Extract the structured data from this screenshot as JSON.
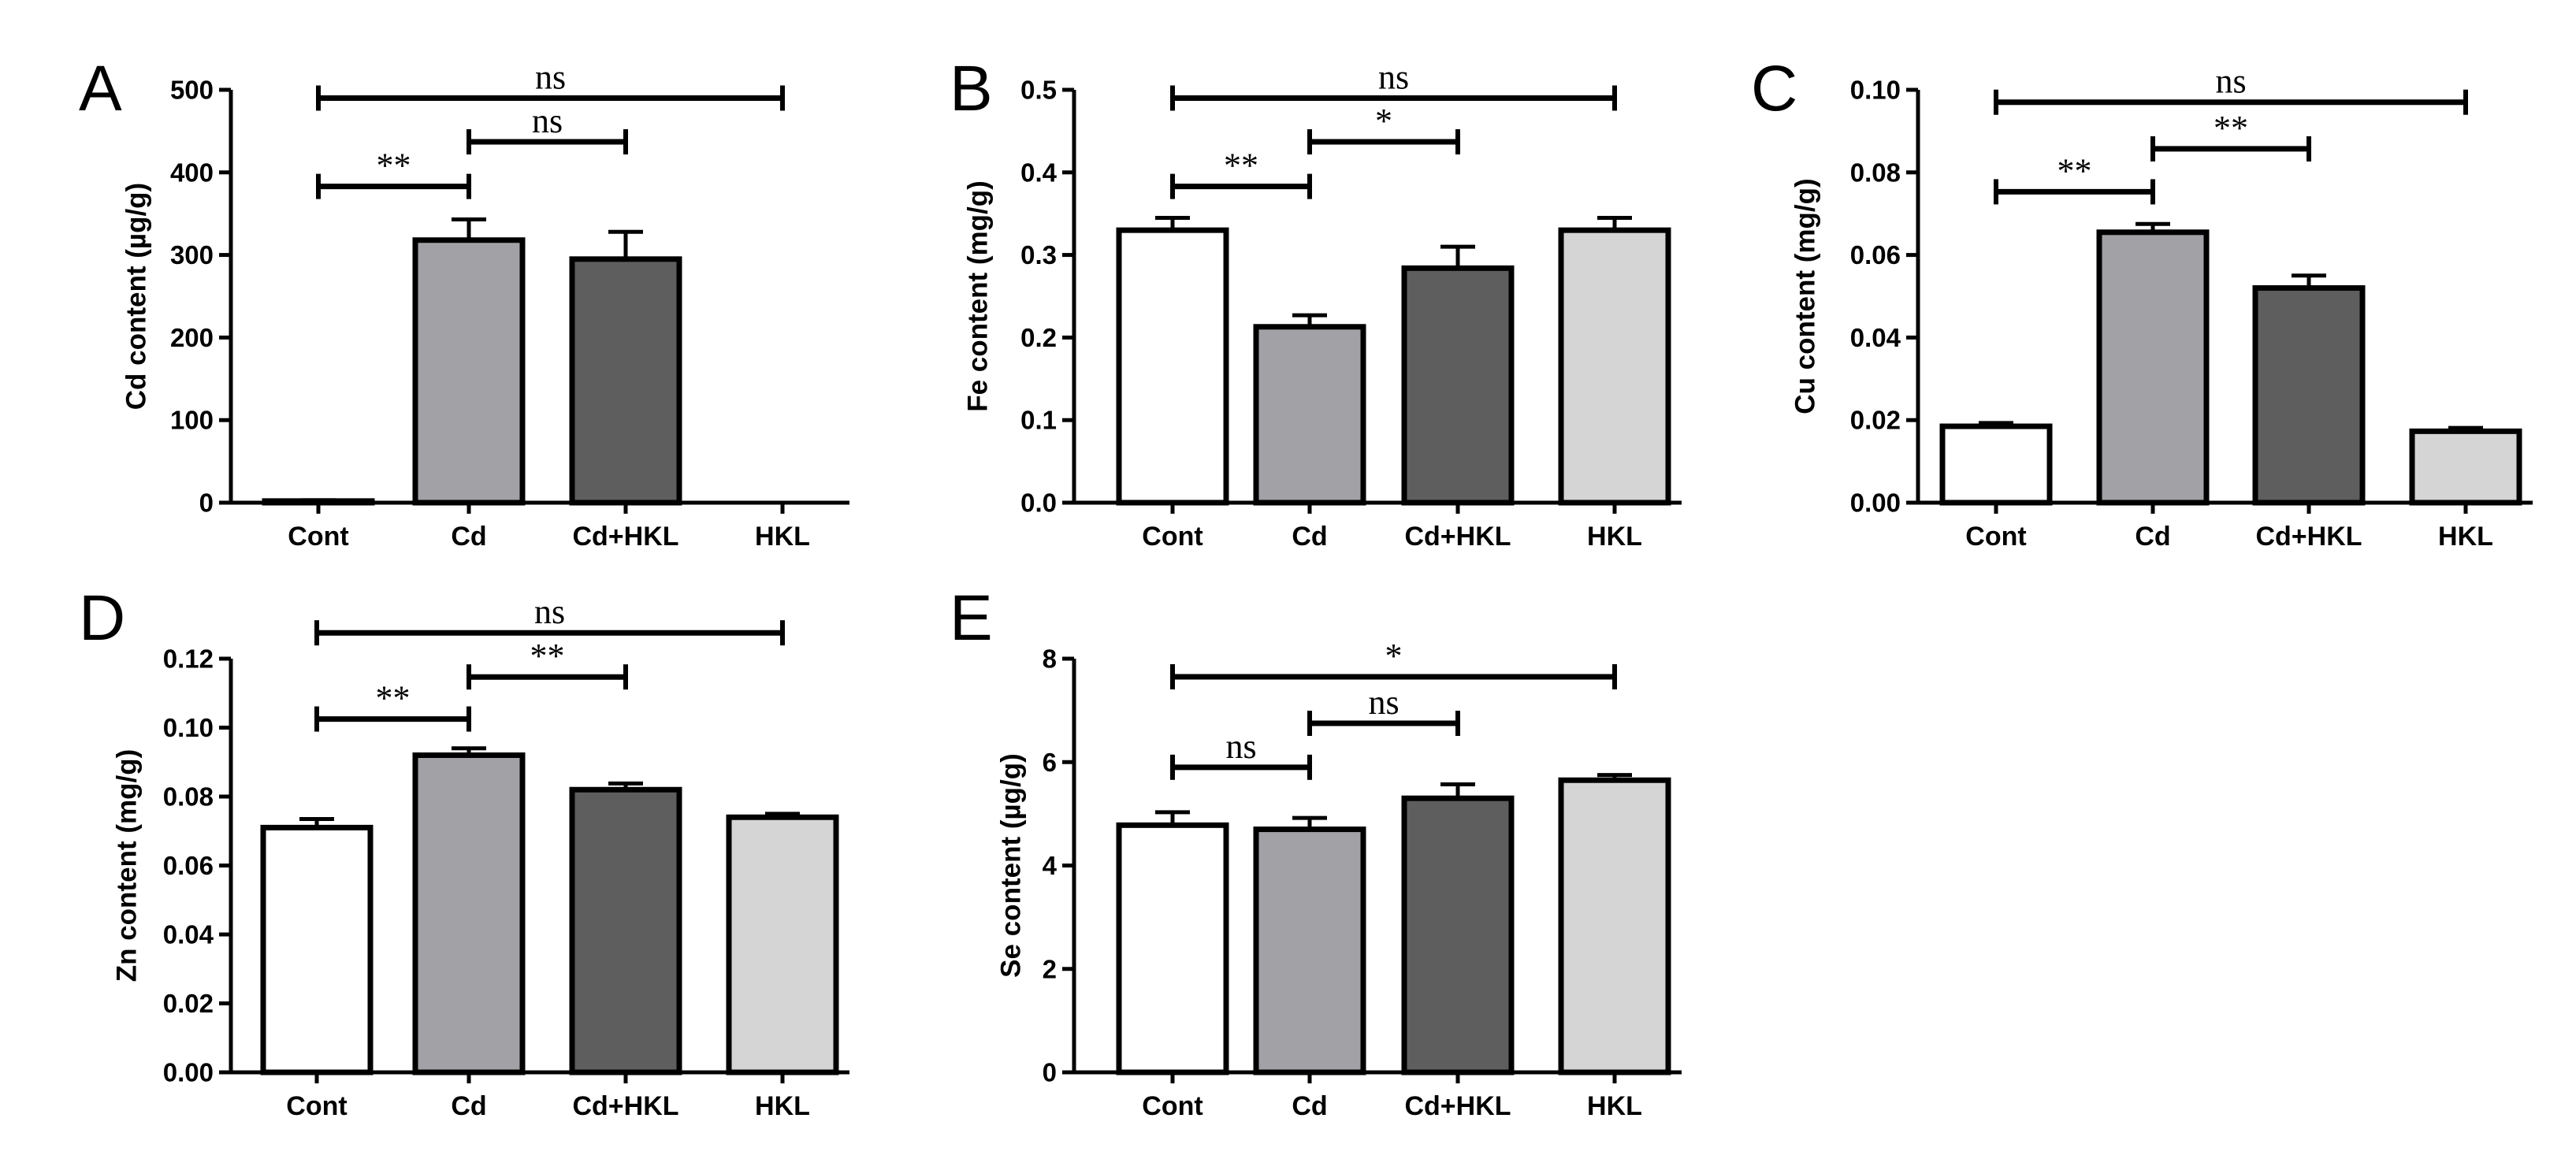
{
  "chart_data": [
    {
      "panel": "A",
      "type": "bar",
      "ylabel": "Cd content (µg/g)",
      "categories": [
        "Cont",
        "Cd",
        "Cd+HKL",
        "HKL"
      ],
      "values": [
        2,
        318,
        295,
        0
      ],
      "errors": [
        1,
        25,
        33,
        0
      ],
      "ylim": [
        0,
        500
      ],
      "yticks": [
        "0",
        "100",
        "200",
        "300",
        "400",
        "500"
      ],
      "ytick_values": [
        0,
        100,
        200,
        300,
        400,
        500
      ],
      "brackets": [
        {
          "from": 0,
          "to": 3,
          "label": "ns",
          "level": 490
        },
        {
          "from": 1,
          "to": 2,
          "label": "ns",
          "level": 437
        },
        {
          "from": 0,
          "to": 1,
          "label": "**",
          "level": 383
        }
      ]
    },
    {
      "panel": "B",
      "type": "bar",
      "ylabel": "Fe content (mg/g)",
      "categories": [
        "Cont",
        "Cd",
        "Cd+HKL",
        "HKL"
      ],
      "values": [
        0.33,
        0.213,
        0.284,
        0.33
      ],
      "errors": [
        0.015,
        0.014,
        0.026,
        0.015
      ],
      "ylim": [
        0,
        0.5
      ],
      "yticks": [
        "0.0",
        "0.1",
        "0.2",
        "0.3",
        "0.4",
        "0.5"
      ],
      "ytick_values": [
        0,
        0.1,
        0.2,
        0.3,
        0.4,
        0.5
      ],
      "brackets": [
        {
          "from": 0,
          "to": 3,
          "label": "ns",
          "level": 0.49
        },
        {
          "from": 1,
          "to": 2,
          "label": "*",
          "level": 0.437
        },
        {
          "from": 0,
          "to": 1,
          "label": "**",
          "level": 0.383
        }
      ]
    },
    {
      "panel": "C",
      "type": "bar",
      "ylabel": "Cu content (mg/g)",
      "categories": [
        "Cont",
        "Cd",
        "Cd+HKL",
        "HKL"
      ],
      "values": [
        0.0185,
        0.0655,
        0.052,
        0.0173
      ],
      "errors": [
        0.0008,
        0.002,
        0.003,
        0.0008
      ],
      "ylim": [
        0,
        0.1
      ],
      "yticks": [
        "0.00",
        "0.02",
        "0.04",
        "0.06",
        "0.08",
        "0.10"
      ],
      "ytick_values": [
        0,
        0.02,
        0.04,
        0.06,
        0.08,
        0.1
      ],
      "brackets": [
        {
          "from": 0,
          "to": 3,
          "label": "ns",
          "level": 0.097
        },
        {
          "from": 1,
          "to": 2,
          "label": "**",
          "level": 0.0857
        },
        {
          "from": 0,
          "to": 1,
          "label": "**",
          "level": 0.0753
        }
      ]
    },
    {
      "panel": "D",
      "type": "bar",
      "ylabel": "Zn content (mg/g)",
      "categories": [
        "Cont",
        "Cd",
        "Cd+HKL",
        "HKL"
      ],
      "values": [
        0.071,
        0.092,
        0.082,
        0.074
      ],
      "errors": [
        0.0025,
        0.002,
        0.0018,
        0.001
      ],
      "ylim": [
        0,
        0.12
      ],
      "yticks": [
        "0.00",
        "0.02",
        "0.04",
        "0.06",
        "0.08",
        "0.10",
        "0.12"
      ],
      "ytick_values": [
        0,
        0.02,
        0.04,
        0.06,
        0.08,
        0.1,
        0.12
      ],
      "brackets": [
        {
          "from": 0,
          "to": 3,
          "label": "ns",
          "level": 0.1275
        },
        {
          "from": 1,
          "to": 2,
          "label": "**",
          "level": 0.1147
        },
        {
          "from": 0,
          "to": 1,
          "label": "**",
          "level": 0.1025
        }
      ]
    },
    {
      "panel": "E",
      "type": "bar",
      "ylabel": "Se content (µg/g)",
      "categories": [
        "Cont",
        "Cd",
        "Cd+HKL",
        "HKL"
      ],
      "values": [
        4.78,
        4.7,
        5.3,
        5.65
      ],
      "errors": [
        0.25,
        0.22,
        0.27,
        0.1
      ],
      "ylim": [
        0,
        8
      ],
      "yticks": [
        "0",
        "2",
        "4",
        "6",
        "8"
      ],
      "ytick_values": [
        0,
        2,
        4,
        6,
        8
      ],
      "brackets": [
        {
          "from": 0,
          "to": 3,
          "label": "*",
          "level": 7.65
        },
        {
          "from": 1,
          "to": 2,
          "label": "ns",
          "level": 6.75
        },
        {
          "from": 0,
          "to": 1,
          "label": "ns",
          "level": 5.9
        }
      ]
    }
  ],
  "colors": {
    "bar_fills": [
      "#ffffff",
      "#a1a1a6",
      "#5e5e5e",
      "#d5d5d5"
    ],
    "outline": "#000000"
  }
}
